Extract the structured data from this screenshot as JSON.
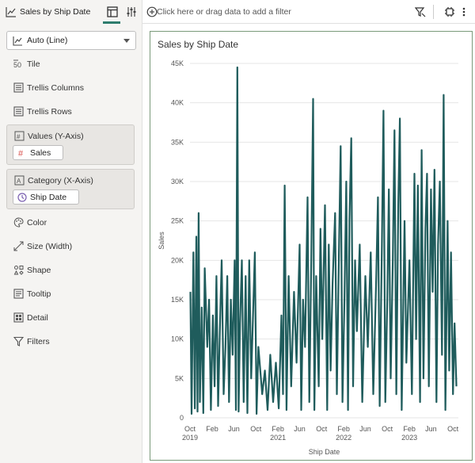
{
  "toolbar": {
    "canvas_title": "Sales by Ship Date",
    "filter_hint": "Click here or drag data to add a filter"
  },
  "grammar": {
    "chart_type": "Auto (Line)",
    "items": [
      {
        "label": "Tile",
        "icon": "tile-icon"
      },
      {
        "label": "Trellis Columns",
        "icon": "trellis-columns-icon"
      },
      {
        "label": "Trellis Rows",
        "icon": "trellis-rows-icon"
      },
      {
        "label": "Color",
        "icon": "color-palette-icon"
      },
      {
        "label": "Size (Width)",
        "icon": "size-icon"
      },
      {
        "label": "Shape",
        "icon": "shape-icon"
      },
      {
        "label": "Tooltip",
        "icon": "tooltip-icon"
      },
      {
        "label": "Detail",
        "icon": "detail-icon"
      },
      {
        "label": "Filters",
        "icon": "filter-funnel-icon"
      }
    ],
    "values_section": {
      "label": "Values (Y-Axis)",
      "pill": "Sales"
    },
    "category_section": {
      "label": "Category (X-Axis)",
      "pill": "Ship Date"
    }
  },
  "colors": {
    "line": "#1f5c5c",
    "pill_measure": "#d9534f",
    "pill_date": "#7a5fb0"
  },
  "chart_data": {
    "type": "line",
    "title": "Sales by Ship Date",
    "xlabel": "Ship Date",
    "ylabel": "Sales",
    "ylim": [
      0,
      45000
    ],
    "xlim": [
      "2019-10-01",
      "2023-10-31"
    ],
    "yticks": [
      "0",
      "5K",
      "10K",
      "15K",
      "20K",
      "25K",
      "30K",
      "35K",
      "40K",
      "45K"
    ],
    "xticks": [
      {
        "month": "Oct",
        "year": "2019",
        "date": "2019-10-01"
      },
      {
        "month": "Feb",
        "year": "",
        "date": "2020-02-01"
      },
      {
        "month": "Jun",
        "year": "",
        "date": "2020-06-01"
      },
      {
        "month": "Oct",
        "year": "",
        "date": "2020-10-01"
      },
      {
        "month": "Feb",
        "year": "2021",
        "date": "2021-02-01"
      },
      {
        "month": "Jun",
        "year": "",
        "date": "2021-06-01"
      },
      {
        "month": "Oct",
        "year": "",
        "date": "2021-10-01"
      },
      {
        "month": "Feb",
        "year": "2022",
        "date": "2022-02-01"
      },
      {
        "month": "Jun",
        "year": "",
        "date": "2022-06-01"
      },
      {
        "month": "Oct",
        "year": "",
        "date": "2022-10-01"
      },
      {
        "month": "Feb",
        "year": "2023",
        "date": "2023-02-01"
      },
      {
        "month": "Jun",
        "year": "",
        "date": "2023-06-01"
      },
      {
        "month": "Oct",
        "year": "",
        "date": "2023-10-01"
      }
    ],
    "grid": true,
    "series": [
      {
        "values": [
          [
            "2019-10-03",
            16000
          ],
          [
            "2019-10-10",
            500
          ],
          [
            "2019-10-20",
            21000
          ],
          [
            "2019-10-28",
            1200
          ],
          [
            "2019-11-05",
            23000
          ],
          [
            "2019-11-12",
            800
          ],
          [
            "2019-11-18",
            26000
          ],
          [
            "2019-11-25",
            2000
          ],
          [
            "2019-12-05",
            14000
          ],
          [
            "2019-12-14",
            600
          ],
          [
            "2019-12-22",
            19000
          ],
          [
            "2020-01-05",
            9000
          ],
          [
            "2020-01-15",
            15000
          ],
          [
            "2020-01-25",
            1000
          ],
          [
            "2020-02-05",
            13000
          ],
          [
            "2020-02-15",
            4000
          ],
          [
            "2020-02-25",
            18000
          ],
          [
            "2020-03-05",
            1500
          ],
          [
            "2020-03-15",
            11000
          ],
          [
            "2020-03-25",
            20000
          ],
          [
            "2020-04-05",
            3000
          ],
          [
            "2020-04-15",
            9000
          ],
          [
            "2020-04-25",
            18000
          ],
          [
            "2020-05-05",
            2000
          ],
          [
            "2020-05-15",
            15000
          ],
          [
            "2020-05-25",
            8000
          ],
          [
            "2020-06-05",
            20000
          ],
          [
            "2020-06-12",
            1000
          ],
          [
            "2020-06-20",
            44500
          ],
          [
            "2020-06-27",
            800
          ],
          [
            "2020-07-05",
            12000
          ],
          [
            "2020-07-15",
            20000
          ],
          [
            "2020-07-25",
            2000
          ],
          [
            "2020-08-05",
            18000
          ],
          [
            "2020-08-15",
            600
          ],
          [
            "2020-08-25",
            20000
          ],
          [
            "2020-09-05",
            5000
          ],
          [
            "2020-09-15",
            13000
          ],
          [
            "2020-09-25",
            21000
          ],
          [
            "2020-10-05",
            500
          ],
          [
            "2020-10-15",
            9000
          ],
          [
            "2020-11-05",
            3000
          ],
          [
            "2020-11-20",
            6000
          ],
          [
            "2020-12-05",
            1000
          ],
          [
            "2020-12-20",
            8000
          ],
          [
            "2021-01-05",
            2000
          ],
          [
            "2021-01-20",
            7000
          ],
          [
            "2021-02-05",
            1200
          ],
          [
            "2021-02-20",
            13000
          ],
          [
            "2021-03-01",
            3000
          ],
          [
            "2021-03-10",
            29500
          ],
          [
            "2021-03-20",
            1000
          ],
          [
            "2021-04-01",
            18000
          ],
          [
            "2021-04-15",
            4000
          ],
          [
            "2021-05-01",
            16000
          ],
          [
            "2021-05-15",
            7000
          ],
          [
            "2021-06-01",
            22000
          ],
          [
            "2021-06-10",
            1000
          ],
          [
            "2021-06-20",
            15000
          ],
          [
            "2021-07-01",
            9000
          ],
          [
            "2021-07-15",
            28000
          ],
          [
            "2021-07-25",
            2000
          ],
          [
            "2021-08-05",
            20000
          ],
          [
            "2021-08-15",
            40500
          ],
          [
            "2021-08-22",
            1000
          ],
          [
            "2021-09-01",
            18000
          ],
          [
            "2021-09-15",
            4000
          ],
          [
            "2021-09-25",
            24000
          ],
          [
            "2021-10-05",
            10000
          ],
          [
            "2021-10-20",
            27000
          ],
          [
            "2021-11-01",
            1000
          ],
          [
            "2021-11-10",
            22000
          ],
          [
            "2021-11-20",
            6000
          ],
          [
            "2021-12-01",
            17000
          ],
          [
            "2021-12-15",
            26000
          ],
          [
            "2021-12-25",
            3000
          ],
          [
            "2022-01-05",
            20000
          ],
          [
            "2022-01-15",
            34500
          ],
          [
            "2022-01-25",
            2000
          ],
          [
            "2022-02-05",
            15000
          ],
          [
            "2022-02-15",
            30000
          ],
          [
            "2022-02-25",
            1000
          ],
          [
            "2022-03-05",
            25000
          ],
          [
            "2022-03-15",
            35500
          ],
          [
            "2022-03-25",
            4000
          ],
          [
            "2022-04-05",
            20000
          ],
          [
            "2022-04-15",
            11000
          ],
          [
            "2022-05-01",
            22000
          ],
          [
            "2022-05-15",
            2000
          ],
          [
            "2022-06-01",
            18000
          ],
          [
            "2022-06-15",
            9000
          ],
          [
            "2022-07-01",
            21000
          ],
          [
            "2022-07-15",
            3000
          ],
          [
            "2022-08-01",
            18000
          ],
          [
            "2022-08-10",
            28000
          ],
          [
            "2022-08-20",
            1500
          ],
          [
            "2022-09-01",
            22000
          ],
          [
            "2022-09-10",
            39000
          ],
          [
            "2022-09-20",
            2000
          ],
          [
            "2022-10-01",
            15000
          ],
          [
            "2022-10-10",
            29000
          ],
          [
            "2022-10-20",
            5000
          ],
          [
            "2022-11-01",
            20000
          ],
          [
            "2022-11-10",
            36500
          ],
          [
            "2022-11-20",
            3000
          ],
          [
            "2022-12-01",
            27000
          ],
          [
            "2022-12-10",
            38000
          ],
          [
            "2022-12-20",
            1000
          ],
          [
            "2023-01-05",
            25000
          ],
          [
            "2023-01-15",
            7000
          ],
          [
            "2023-02-01",
            20000
          ],
          [
            "2023-02-15",
            3000
          ],
          [
            "2023-03-01",
            31000
          ],
          [
            "2023-03-10",
            10000
          ],
          [
            "2023-03-20",
            29500
          ],
          [
            "2023-04-01",
            2000
          ],
          [
            "2023-04-10",
            34000
          ],
          [
            "2023-04-20",
            5000
          ],
          [
            "2023-05-01",
            24000
          ],
          [
            "2023-05-10",
            31000
          ],
          [
            "2023-05-20",
            4000
          ],
          [
            "2023-06-01",
            29000
          ],
          [
            "2023-06-10",
            16000
          ],
          [
            "2023-06-20",
            31500
          ],
          [
            "2023-07-01",
            2000
          ],
          [
            "2023-07-10",
            22000
          ],
          [
            "2023-07-20",
            30000
          ],
          [
            "2023-08-01",
            8000
          ],
          [
            "2023-08-10",
            41000
          ],
          [
            "2023-08-20",
            1000
          ],
          [
            "2023-09-01",
            25000
          ],
          [
            "2023-09-10",
            6000
          ],
          [
            "2023-09-20",
            21000
          ],
          [
            "2023-10-01",
            3000
          ],
          [
            "2023-10-10",
            12000
          ],
          [
            "2023-10-20",
            4000
          ]
        ]
      }
    ]
  }
}
